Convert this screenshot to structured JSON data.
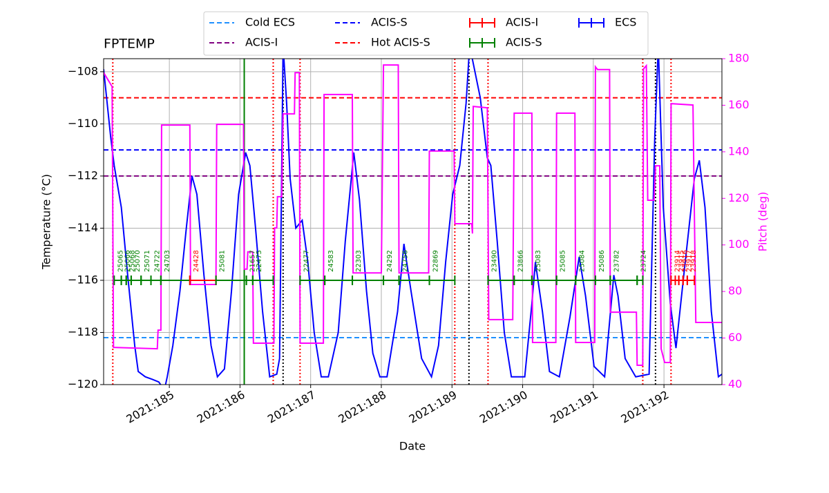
{
  "chart_data": {
    "type": "line",
    "title": "FPTEMP",
    "x_label": "Date",
    "y_label": "Temperature (°C)",
    "y2_label": "Pitch (deg)",
    "y2_color": "#ff00ff",
    "xlim": [
      184.07,
      192.82
    ],
    "xticks": [
      {
        "value": 185,
        "label": "2021:185"
      },
      {
        "value": 186,
        "label": "2021:186"
      },
      {
        "value": 187,
        "label": "2021:187"
      },
      {
        "value": 188,
        "label": "2021:188"
      },
      {
        "value": 189,
        "label": "2021:189"
      },
      {
        "value": 190,
        "label": "2021:190"
      },
      {
        "value": 191,
        "label": "2021:191"
      },
      {
        "value": 192,
        "label": "2021:192"
      }
    ],
    "ylim": [
      -120,
      -107.5
    ],
    "yticks": [
      {
        "value": -120,
        "label": "−120"
      },
      {
        "value": -118,
        "label": "−118"
      },
      {
        "value": -116,
        "label": "−116"
      },
      {
        "value": -114,
        "label": "−114"
      },
      {
        "value": -112,
        "label": "−112"
      },
      {
        "value": -110,
        "label": "−110"
      },
      {
        "value": -108,
        "label": "−108"
      }
    ],
    "y2lim": [
      40,
      180
    ],
    "y2ticks": [
      40,
      60,
      80,
      100,
      120,
      140,
      160,
      180
    ],
    "grid": true,
    "series": [
      {
        "color": "#0000ff",
        "x": [
          184.07,
          184.17,
          184.22,
          184.32,
          184.41,
          184.51,
          184.56,
          184.66,
          184.76,
          184.85,
          184.93,
          184.97,
          185.05,
          185.15,
          185.24,
          185.32,
          185.39,
          185.49,
          185.59,
          185.68,
          185.78,
          185.88,
          185.98,
          186.08,
          186.14,
          186.22,
          186.32,
          186.42,
          186.52,
          186.56,
          186.61,
          186.66,
          186.71,
          186.79,
          186.88,
          186.96,
          187.05,
          187.15,
          187.25,
          187.39,
          187.49,
          187.61,
          187.69,
          187.79,
          187.88,
          187.98,
          188.08,
          188.23,
          188.32,
          188.42,
          188.57,
          188.71,
          188.81,
          188.91,
          189.01,
          189.11,
          189.2,
          189.25,
          189.4,
          189.5,
          189.55,
          189.64,
          189.74,
          189.84,
          190.03,
          190.13,
          190.18,
          190.28,
          190.38,
          190.52,
          190.67,
          190.8,
          190.89,
          191.01,
          191.16,
          191.29,
          191.35,
          191.45,
          191.6,
          191.79,
          191.87,
          191.92,
          191.99,
          192.09,
          192.17,
          192.28,
          192.43,
          192.5,
          192.58,
          192.67,
          192.77,
          192.82
        ],
        "values": [
          -107.9,
          -110.5,
          -111.6,
          -113.2,
          -115.8,
          -118.5,
          -119.5,
          -119.7,
          -119.8,
          -119.9,
          -120.2,
          -119.7,
          -118.5,
          -116.4,
          -114,
          -112,
          -112.7,
          -115.8,
          -118.5,
          -119.7,
          -119.4,
          -116.4,
          -112.7,
          -111.1,
          -111.6,
          -114,
          -117.2,
          -119.7,
          -119.6,
          -119,
          -107,
          -109.2,
          -112.1,
          -114,
          -113.7,
          -115.3,
          -118,
          -119.7,
          -119.7,
          -118,
          -114.5,
          -111.1,
          -112.9,
          -116.4,
          -118.8,
          -119.7,
          -119.7,
          -117.2,
          -114.6,
          -116.4,
          -119,
          -119.7,
          -118.5,
          -115.3,
          -112.7,
          -111.6,
          -109.2,
          -107,
          -109,
          -111.3,
          -111.6,
          -114.5,
          -118,
          -119.7,
          -119.7,
          -116.9,
          -115.3,
          -117.2,
          -119.5,
          -119.7,
          -117.4,
          -115.1,
          -116.6,
          -119.3,
          -119.7,
          -115.8,
          -116.6,
          -119,
          -119.7,
          -119.6,
          -110.5,
          -107,
          -113.2,
          -116.9,
          -118.6,
          -115.8,
          -112.1,
          -111.4,
          -113.2,
          -117.2,
          -119.7,
          -119.6
        ]
      },
      {
        "color": "#ff00ff",
        "axis": "y2",
        "x": [
          184.07,
          184.15,
          184.19,
          184.21,
          184.83,
          184.84,
          184.88,
          184.89,
          185.29,
          185.3,
          185.66,
          185.67,
          186.05,
          186.06,
          186.1,
          186.11,
          186.18,
          186.19,
          186.48,
          186.49,
          186.52,
          186.53,
          186.59,
          186.61,
          186.77,
          186.78,
          186.84,
          186.85,
          187.18,
          187.19,
          187.59,
          187.6,
          188.0,
          188.03,
          188.24,
          188.25,
          188.67,
          188.68,
          189.03,
          189.04,
          189.28,
          189.29,
          189.3,
          189.5,
          189.52,
          189.86,
          189.88,
          190.13,
          190.14,
          190.47,
          190.48,
          190.74,
          190.75,
          191.02,
          191.03,
          191.06,
          191.23,
          191.24,
          191.61,
          191.62,
          191.7,
          191.71,
          191.75,
          191.77,
          191.86,
          191.88,
          191.94,
          191.96,
          192.01,
          192.09,
          192.1,
          192.41,
          192.45,
          192.82
        ],
        "values": [
          174,
          170,
          168,
          56,
          55.4,
          63.4,
          63.4,
          151.5,
          151.5,
          83,
          83,
          151.8,
          151.8,
          89.6,
          89.6,
          97,
          97,
          57.8,
          57.8,
          107.3,
          107.3,
          120.7,
          120.7,
          156.3,
          156.3,
          174,
          174,
          57.8,
          57.8,
          164.6,
          164.6,
          88,
          88,
          177.3,
          177.3,
          88,
          88,
          140.3,
          140.3,
          109.1,
          109.1,
          104.9,
          159.5,
          158.9,
          67.9,
          67.9,
          156.6,
          156.6,
          58.1,
          58.1,
          156.6,
          156.6,
          58.1,
          58.1,
          176.5,
          175.3,
          175.3,
          71.1,
          71.1,
          48.3,
          48.3,
          175.6,
          177,
          119.2,
          119.2,
          134,
          134,
          55.4,
          49.5,
          49.5,
          160.7,
          160.1,
          66.7,
          66.7
        ]
      }
    ],
    "limit_lines": [
      {
        "name": "Cold ECS",
        "color": "#1e90ff",
        "value": -118.2
      },
      {
        "name": "ACIS-I",
        "color": "#800080",
        "value": -112
      },
      {
        "name": "ACIS-S",
        "color": "#0000ff",
        "value": -111
      },
      {
        "name": "Hot ACIS-S",
        "color": "#ff0000",
        "value": -109
      }
    ],
    "obs_types": [
      {
        "name": "ACIS-I",
        "color": "#ff0000"
      },
      {
        "name": "ACIS-S",
        "color": "#008000"
      },
      {
        "name": "ECS",
        "color": "#0000ff"
      }
    ],
    "obs_level": -116,
    "observations": [
      {
        "obsid": "25065",
        "type": 1,
        "start": 184.22,
        "end": 184.32
      },
      {
        "obsid": "25066",
        "type": 1,
        "start": 184.32,
        "end": 184.39
      },
      {
        "obsid": "25068",
        "type": 1,
        "start": 184.39,
        "end": 184.46
      },
      {
        "obsid": "25070",
        "type": 1,
        "start": 184.46,
        "end": 184.6
      },
      {
        "obsid": "25071",
        "type": 1,
        "start": 184.6,
        "end": 184.74
      },
      {
        "obsid": "24722",
        "type": 1,
        "start": 184.74,
        "end": 184.88
      },
      {
        "obsid": "24703",
        "type": 1,
        "start": 184.88,
        "end": 185.29
      },
      {
        "obsid": "24428",
        "type": 0,
        "start": 185.29,
        "end": 185.66
      },
      {
        "obsid": "25081",
        "type": 1,
        "start": 185.66,
        "end": 186.09
      },
      {
        "obsid": "21657",
        "type": 1,
        "start": 186.09,
        "end": 186.18
      },
      {
        "obsid": "22475",
        "type": 1,
        "start": 186.18,
        "end": 186.47
      },
      {
        "obsid": "22477",
        "type": 1,
        "start": 186.85,
        "end": 187.2
      },
      {
        "obsid": "24583",
        "type": 1,
        "start": 187.2,
        "end": 187.59
      },
      {
        "obsid": "22303",
        "type": 1,
        "start": 187.59,
        "end": 188.03
      },
      {
        "obsid": "24292",
        "type": 1,
        "start": 188.03,
        "end": 188.25
      },
      {
        "obsid": "24756",
        "type": 1,
        "start": 188.25,
        "end": 188.68
      },
      {
        "obsid": "22869",
        "type": 1,
        "start": 188.68,
        "end": 189.04
      },
      {
        "obsid": "23490",
        "type": 1,
        "start": 189.51,
        "end": 189.88
      },
      {
        "obsid": "23866",
        "type": 1,
        "start": 189.88,
        "end": 190.13
      },
      {
        "obsid": "25083",
        "type": 1,
        "start": 190.13,
        "end": 190.48
      },
      {
        "obsid": "25085",
        "type": 1,
        "start": 190.48,
        "end": 190.75
      },
      {
        "obsid": "25084",
        "type": 1,
        "start": 190.75,
        "end": 191.03
      },
      {
        "obsid": "25086",
        "type": 1,
        "start": 191.03,
        "end": 191.24
      },
      {
        "obsid": "23782",
        "type": 1,
        "start": 191.24,
        "end": 191.62
      },
      {
        "obsid": "23724",
        "type": 1,
        "start": 191.62,
        "end": 191.7
      },
      {
        "obsid": "23914",
        "type": 0,
        "start": 192.1,
        "end": 192.16
      },
      {
        "obsid": "23915",
        "type": 0,
        "start": 192.16,
        "end": 192.21
      },
      {
        "obsid": "23916",
        "type": 0,
        "start": 192.21,
        "end": 192.27
      },
      {
        "obsid": "23917",
        "type": 0,
        "start": 192.27,
        "end": 192.33
      },
      {
        "obsid": "23918",
        "type": 0,
        "start": 192.33,
        "end": 192.43
      }
    ],
    "vlines": [
      {
        "x": 184.2,
        "color": "#ff0000",
        "style": "dotted"
      },
      {
        "x": 186.47,
        "color": "#ff0000",
        "style": "dotted"
      },
      {
        "x": 186.85,
        "color": "#ff0000",
        "style": "dotted"
      },
      {
        "x": 189.04,
        "color": "#ff0000",
        "style": "dotted"
      },
      {
        "x": 189.51,
        "color": "#ff0000",
        "style": "dotted"
      },
      {
        "x": 191.7,
        "color": "#ff0000",
        "style": "dotted"
      },
      {
        "x": 192.1,
        "color": "#ff0000",
        "style": "dotted"
      },
      {
        "x": 186.61,
        "color": "#000000",
        "style": "dotted"
      },
      {
        "x": 189.24,
        "color": "#000000",
        "style": "dotted"
      },
      {
        "x": 191.88,
        "color": "#000000",
        "style": "dotted"
      },
      {
        "x": 186.06,
        "color": "#008000",
        "style": "solid"
      }
    ]
  }
}
